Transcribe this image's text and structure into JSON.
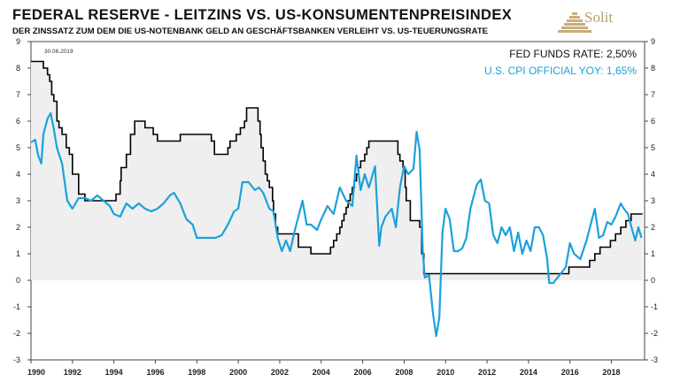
{
  "header": {
    "title": "FEDERAL  RESERVE - LEITZINS  VS.  US-KONSUMENTENPREISINDEX",
    "subtitle": "DER ZINSSATZ ZUM DEM DIE US-NOTENBANK GELD AN GESCHÄFTSBANKEN VERLEIHT VS. US-TEUERUNGSRATE",
    "logo_text": "Solit",
    "logo_icon": "pyramid-logo-icon"
  },
  "colors": {
    "fed_line": "#000000",
    "fed_fill": "#efefef",
    "cpi_line": "#1ba1dc",
    "logo": "#c9ae7c"
  },
  "chart_data": {
    "type": "line",
    "title": "FEDERAL  RESERVE - LEITZINS  VS.  US-KONSUMENTENPREISINDEX",
    "date_label": "30.06.2019",
    "xlim": [
      1990,
      2019.6
    ],
    "ylim": [
      -3,
      9
    ],
    "x_ticks": [
      1990,
      1992,
      1994,
      1996,
      1998,
      2000,
      2002,
      2004,
      2006,
      2008,
      2010,
      2012,
      2014,
      2016,
      2018
    ],
    "y_ticks": [
      -3,
      -2,
      -1,
      0,
      1,
      2,
      3,
      4,
      5,
      6,
      7,
      8,
      9
    ],
    "legend": [
      {
        "label": "FED FUNDS RATE: 2,50%",
        "color": "#000000"
      },
      {
        "label": "U.S. CPI OFFICIAL YOY: 1,65%",
        "color": "#1ba1dc"
      }
    ],
    "series": [
      {
        "name": "FED FUNDS RATE",
        "style": "step-filled",
        "x": [
          1990.0,
          1990.6,
          1990.8,
          1990.9,
          1991.0,
          1991.1,
          1991.25,
          1991.35,
          1991.5,
          1991.7,
          1991.85,
          1992.0,
          1992.3,
          1992.6,
          1994.1,
          1994.3,
          1994.35,
          1994.6,
          1994.8,
          1995.0,
          1995.5,
          1995.9,
          1996.1,
          1997.2,
          1998.7,
          1998.85,
          1999.0,
          1999.5,
          1999.6,
          1999.9,
          2000.1,
          2000.3,
          2000.4,
          2000.95,
          2001.05,
          2001.1,
          2001.2,
          2001.3,
          2001.4,
          2001.5,
          2001.65,
          2001.7,
          2001.8,
          2001.9,
          2002.9,
          2003.5,
          2004.45,
          2004.6,
          2004.75,
          2004.9,
          2005.0,
          2005.1,
          2005.2,
          2005.3,
          2005.4,
          2005.5,
          2005.6,
          2005.7,
          2005.8,
          2005.9,
          2006.0,
          2006.1,
          2006.2,
          2006.3,
          2006.5,
          2007.7,
          2007.8,
          2007.95,
          2008.05,
          2008.1,
          2008.3,
          2008.75,
          2008.85,
          2008.95,
          2015.95,
          2016.95,
          2017.2,
          2017.45,
          2017.95,
          2018.2,
          2018.45,
          2018.7,
          2018.95,
          2019.5
        ],
        "values": [
          8.25,
          8.0,
          7.75,
          7.5,
          7.0,
          6.75,
          6.0,
          5.75,
          5.5,
          5.0,
          4.75,
          4.0,
          3.25,
          3.0,
          3.25,
          3.75,
          4.25,
          4.75,
          5.5,
          6.0,
          5.75,
          5.5,
          5.25,
          5.5,
          5.25,
          4.75,
          4.75,
          5.0,
          5.25,
          5.5,
          5.75,
          6.0,
          6.5,
          6.0,
          5.5,
          5.0,
          4.5,
          4.0,
          3.75,
          3.5,
          3.0,
          2.5,
          2.0,
          1.75,
          1.25,
          1.0,
          1.25,
          1.5,
          1.75,
          2.0,
          2.25,
          2.5,
          2.75,
          3.0,
          3.25,
          3.5,
          3.75,
          4.0,
          4.25,
          4.5,
          4.5,
          4.75,
          5.0,
          5.25,
          5.25,
          4.75,
          4.5,
          4.25,
          3.5,
          3.0,
          2.25,
          2.0,
          1.0,
          0.25,
          0.5,
          0.75,
          1.0,
          1.25,
          1.5,
          1.75,
          2.0,
          2.25,
          2.5,
          2.5
        ]
      },
      {
        "name": "U.S. CPI OFFICIAL YOY",
        "style": "line",
        "x": [
          1990.0,
          1990.2,
          1990.35,
          1990.5,
          1990.6,
          1990.8,
          1990.95,
          1991.1,
          1991.25,
          1991.5,
          1991.75,
          1992.0,
          1992.3,
          1992.6,
          1992.9,
          1993.2,
          1993.5,
          1993.8,
          1994.0,
          1994.3,
          1994.6,
          1994.9,
          1995.2,
          1995.5,
          1995.8,
          1996.1,
          1996.4,
          1996.7,
          1996.9,
          1997.2,
          1997.5,
          1997.8,
          1998.0,
          1998.3,
          1998.6,
          1998.9,
          1999.2,
          1999.5,
          1999.8,
          2000.0,
          2000.2,
          2000.5,
          2000.8,
          2001.0,
          2001.2,
          2001.5,
          2001.7,
          2001.9,
          2002.1,
          2002.3,
          2002.5,
          2002.7,
          2002.9,
          2003.1,
          2003.3,
          2003.5,
          2003.8,
          2004.0,
          2004.3,
          2004.6,
          2004.9,
          2005.2,
          2005.5,
          2005.7,
          2005.9,
          2006.1,
          2006.3,
          2006.6,
          2006.8,
          2006.9,
          2007.1,
          2007.4,
          2007.6,
          2007.8,
          2008.0,
          2008.2,
          2008.45,
          2008.6,
          2008.75,
          2008.9,
          2009.0,
          2009.2,
          2009.4,
          2009.55,
          2009.7,
          2009.85,
          2010.0,
          2010.2,
          2010.4,
          2010.6,
          2010.8,
          2011.0,
          2011.2,
          2011.5,
          2011.7,
          2011.9,
          2012.1,
          2012.3,
          2012.5,
          2012.7,
          2012.9,
          2013.1,
          2013.3,
          2013.5,
          2013.7,
          2013.9,
          2014.1,
          2014.3,
          2014.5,
          2014.7,
          2014.9,
          2015.0,
          2015.2,
          2015.5,
          2015.8,
          2016.0,
          2016.2,
          2016.5,
          2016.8,
          2017.0,
          2017.2,
          2017.4,
          2017.6,
          2017.8,
          2018.0,
          2018.2,
          2018.45,
          2018.6,
          2018.8,
          2019.0,
          2019.15,
          2019.3,
          2019.45
        ],
        "values": [
          5.2,
          5.3,
          4.7,
          4.4,
          5.5,
          6.1,
          6.3,
          5.7,
          5.0,
          4.4,
          3.0,
          2.7,
          3.1,
          3.1,
          3.0,
          3.2,
          3.0,
          2.8,
          2.5,
          2.4,
          2.9,
          2.7,
          2.9,
          2.7,
          2.6,
          2.7,
          2.9,
          3.2,
          3.3,
          2.9,
          2.3,
          2.1,
          1.6,
          1.6,
          1.6,
          1.6,
          1.7,
          2.1,
          2.6,
          2.7,
          3.7,
          3.7,
          3.4,
          3.5,
          3.3,
          2.7,
          2.6,
          1.6,
          1.1,
          1.5,
          1.1,
          1.8,
          2.4,
          3.0,
          2.1,
          2.1,
          1.9,
          2.3,
          2.8,
          2.5,
          3.5,
          3.0,
          2.8,
          4.7,
          3.4,
          4.0,
          3.5,
          4.3,
          1.3,
          2.0,
          2.4,
          2.7,
          2.0,
          3.5,
          4.3,
          4.0,
          4.2,
          5.6,
          4.9,
          1.1,
          0.1,
          0.2,
          -1.3,
          -2.1,
          -1.4,
          1.8,
          2.7,
          2.3,
          1.1,
          1.1,
          1.2,
          1.6,
          2.7,
          3.6,
          3.8,
          3.0,
          2.9,
          1.7,
          1.4,
          2.0,
          1.7,
          2.0,
          1.1,
          1.8,
          1.0,
          1.5,
          1.1,
          2.0,
          2.0,
          1.7,
          0.8,
          -0.1,
          -0.1,
          0.2,
          0.5,
          1.4,
          1.0,
          0.8,
          1.5,
          2.1,
          2.7,
          1.6,
          1.7,
          2.2,
          2.1,
          2.4,
          2.9,
          2.7,
          2.5,
          1.9,
          1.5,
          2.0,
          1.6
        ]
      }
    ]
  }
}
